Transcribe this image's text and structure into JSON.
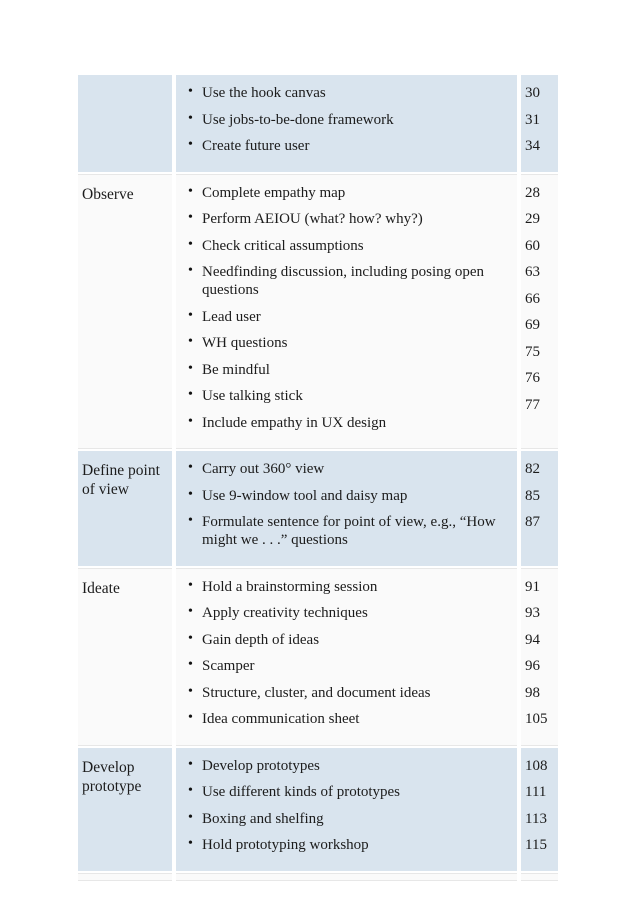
{
  "colors": {
    "row_blue": "#d9e4ee",
    "row_white": "#fafafa",
    "text": "#1c1c1c"
  },
  "bullet_glyph": "•",
  "table": {
    "rows": [
      {
        "phase": "",
        "bg": "blue",
        "items": [
          {
            "label": "Use the hook canvas",
            "page": "30"
          },
          {
            "label": "Use jobs-to-be-done framework",
            "page": "31"
          },
          {
            "label": "Create future user",
            "page": "34"
          }
        ]
      },
      {
        "phase": "Observe",
        "bg": "white",
        "items": [
          {
            "label": "Complete empathy map",
            "page": "28"
          },
          {
            "label": "Perform AEIOU (what? how? why?)",
            "page": "29"
          },
          {
            "label": "Check critical assumptions",
            "page": "60"
          },
          {
            "label": "Needfinding discussion, including posing open questions",
            "page": "63"
          },
          {
            "label": "Lead user",
            "page": "66"
          },
          {
            "label": "WH questions",
            "page": "69"
          },
          {
            "label": "Be mindful",
            "page": "75"
          },
          {
            "label": "Use talking stick",
            "page": "76"
          },
          {
            "label": "Include empathy in UX design",
            "page": "77"
          }
        ]
      },
      {
        "phase": "Define point of view",
        "bg": "blue",
        "items": [
          {
            "label": "Carry out 360° view",
            "page": "82"
          },
          {
            "label": "Use 9-window tool and daisy map",
            "page": "85"
          },
          {
            "label": "Formulate sentence for point of view, e.g., “How might we . . .” questions",
            "page": "87"
          }
        ]
      },
      {
        "phase": "Ideate",
        "bg": "white",
        "items": [
          {
            "label": "Hold a brainstorming session",
            "page": "91"
          },
          {
            "label": "Apply creativity techniques",
            "page": "93"
          },
          {
            "label": "Gain depth of ideas",
            "page": "94"
          },
          {
            "label": "Scamper",
            "page": "96"
          },
          {
            "label": "Structure, cluster, and document ideas",
            "page": "98"
          },
          {
            "label": "Idea communication sheet",
            "page": "105"
          }
        ]
      },
      {
        "phase": "Develop prototype",
        "bg": "blue",
        "items": [
          {
            "label": "Develop prototypes",
            "page": "108"
          },
          {
            "label": "Use different kinds of prototypes",
            "page": "111"
          },
          {
            "label": "Boxing and shelfing",
            "page": "113"
          },
          {
            "label": "Hold prototyping workshop",
            "page": "115"
          }
        ]
      },
      {
        "phase": "",
        "bg": "white",
        "empty": true,
        "items": []
      }
    ]
  }
}
